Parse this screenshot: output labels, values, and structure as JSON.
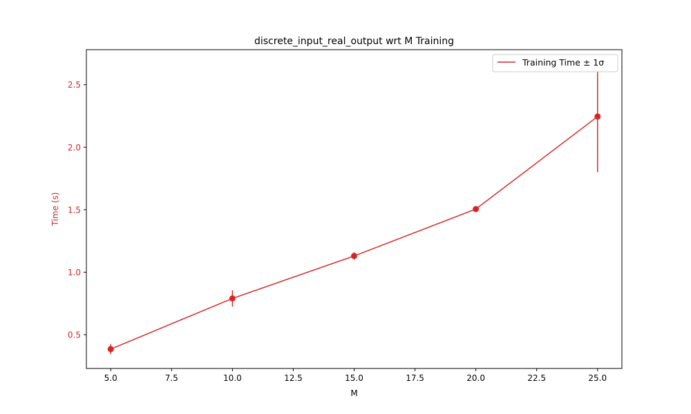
{
  "chart_data": {
    "type": "line",
    "title": "discrete_input_real_output wrt M Training",
    "xlabel": "M",
    "ylabel": "Time (s)",
    "xlim": [
      4.0,
      26.0
    ],
    "ylim": [
      0.23,
      2.78
    ],
    "x_ticks": [
      5.0,
      7.5,
      10.0,
      12.5,
      15.0,
      17.5,
      20.0,
      22.5,
      25.0
    ],
    "x_tick_labels": [
      "5.0",
      "7.5",
      "10.0",
      "12.5",
      "15.0",
      "17.5",
      "20.0",
      "22.5",
      "25.0"
    ],
    "y_ticks": [
      0.5,
      1.0,
      1.5,
      2.0,
      2.5
    ],
    "y_tick_labels": [
      "0.5",
      "1.0",
      "1.5",
      "2.0",
      "2.5"
    ],
    "grid": false,
    "legend_position": "top-right",
    "series": [
      {
        "name": "Training Time ± 1σ",
        "color": "#d62728",
        "x": [
          5,
          10,
          15,
          20,
          25
        ],
        "y": [
          0.385,
          0.79,
          1.13,
          1.505,
          2.245
        ],
        "yerr": [
          0.04,
          0.065,
          0.03,
          0.015,
          0.445
        ]
      }
    ],
    "ylabel_color": "#d62728",
    "ytick_color": "#d62728"
  }
}
